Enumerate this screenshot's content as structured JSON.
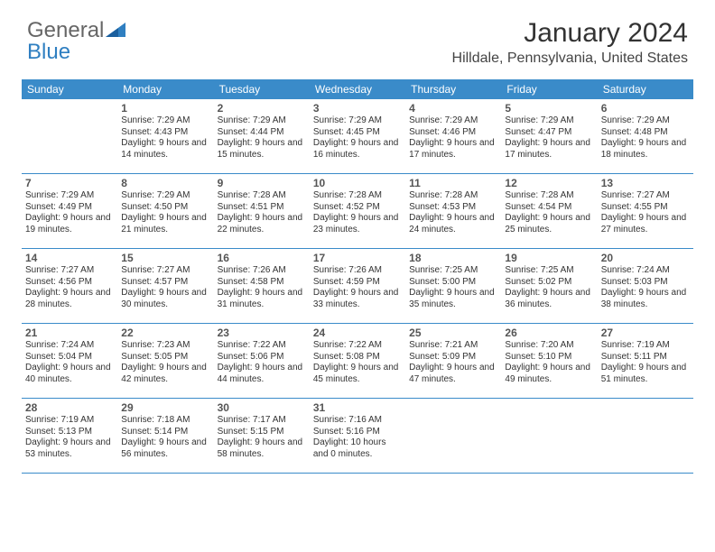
{
  "logo": {
    "part1": "General",
    "part2": "Blue"
  },
  "title": "January 2024",
  "location": "Hilldale, Pennsylvania, United States",
  "colors": {
    "header_bg": "#3a8bc9",
    "header_text": "#ffffff",
    "logo_blue": "#2f7fc1",
    "border": "#3a8bc9"
  },
  "weekdays": [
    "Sunday",
    "Monday",
    "Tuesday",
    "Wednesday",
    "Thursday",
    "Friday",
    "Saturday"
  ],
  "weeks": [
    [
      {
        "n": "",
        "sr": "",
        "ss": "",
        "dl": ""
      },
      {
        "n": "1",
        "sr": "Sunrise: 7:29 AM",
        "ss": "Sunset: 4:43 PM",
        "dl": "Daylight: 9 hours and 14 minutes."
      },
      {
        "n": "2",
        "sr": "Sunrise: 7:29 AM",
        "ss": "Sunset: 4:44 PM",
        "dl": "Daylight: 9 hours and 15 minutes."
      },
      {
        "n": "3",
        "sr": "Sunrise: 7:29 AM",
        "ss": "Sunset: 4:45 PM",
        "dl": "Daylight: 9 hours and 16 minutes."
      },
      {
        "n": "4",
        "sr": "Sunrise: 7:29 AM",
        "ss": "Sunset: 4:46 PM",
        "dl": "Daylight: 9 hours and 17 minutes."
      },
      {
        "n": "5",
        "sr": "Sunrise: 7:29 AM",
        "ss": "Sunset: 4:47 PM",
        "dl": "Daylight: 9 hours and 17 minutes."
      },
      {
        "n": "6",
        "sr": "Sunrise: 7:29 AM",
        "ss": "Sunset: 4:48 PM",
        "dl": "Daylight: 9 hours and 18 minutes."
      }
    ],
    [
      {
        "n": "7",
        "sr": "Sunrise: 7:29 AM",
        "ss": "Sunset: 4:49 PM",
        "dl": "Daylight: 9 hours and 19 minutes."
      },
      {
        "n": "8",
        "sr": "Sunrise: 7:29 AM",
        "ss": "Sunset: 4:50 PM",
        "dl": "Daylight: 9 hours and 21 minutes."
      },
      {
        "n": "9",
        "sr": "Sunrise: 7:28 AM",
        "ss": "Sunset: 4:51 PM",
        "dl": "Daylight: 9 hours and 22 minutes."
      },
      {
        "n": "10",
        "sr": "Sunrise: 7:28 AM",
        "ss": "Sunset: 4:52 PM",
        "dl": "Daylight: 9 hours and 23 minutes."
      },
      {
        "n": "11",
        "sr": "Sunrise: 7:28 AM",
        "ss": "Sunset: 4:53 PM",
        "dl": "Daylight: 9 hours and 24 minutes."
      },
      {
        "n": "12",
        "sr": "Sunrise: 7:28 AM",
        "ss": "Sunset: 4:54 PM",
        "dl": "Daylight: 9 hours and 25 minutes."
      },
      {
        "n": "13",
        "sr": "Sunrise: 7:27 AM",
        "ss": "Sunset: 4:55 PM",
        "dl": "Daylight: 9 hours and 27 minutes."
      }
    ],
    [
      {
        "n": "14",
        "sr": "Sunrise: 7:27 AM",
        "ss": "Sunset: 4:56 PM",
        "dl": "Daylight: 9 hours and 28 minutes."
      },
      {
        "n": "15",
        "sr": "Sunrise: 7:27 AM",
        "ss": "Sunset: 4:57 PM",
        "dl": "Daylight: 9 hours and 30 minutes."
      },
      {
        "n": "16",
        "sr": "Sunrise: 7:26 AM",
        "ss": "Sunset: 4:58 PM",
        "dl": "Daylight: 9 hours and 31 minutes."
      },
      {
        "n": "17",
        "sr": "Sunrise: 7:26 AM",
        "ss": "Sunset: 4:59 PM",
        "dl": "Daylight: 9 hours and 33 minutes."
      },
      {
        "n": "18",
        "sr": "Sunrise: 7:25 AM",
        "ss": "Sunset: 5:00 PM",
        "dl": "Daylight: 9 hours and 35 minutes."
      },
      {
        "n": "19",
        "sr": "Sunrise: 7:25 AM",
        "ss": "Sunset: 5:02 PM",
        "dl": "Daylight: 9 hours and 36 minutes."
      },
      {
        "n": "20",
        "sr": "Sunrise: 7:24 AM",
        "ss": "Sunset: 5:03 PM",
        "dl": "Daylight: 9 hours and 38 minutes."
      }
    ],
    [
      {
        "n": "21",
        "sr": "Sunrise: 7:24 AM",
        "ss": "Sunset: 5:04 PM",
        "dl": "Daylight: 9 hours and 40 minutes."
      },
      {
        "n": "22",
        "sr": "Sunrise: 7:23 AM",
        "ss": "Sunset: 5:05 PM",
        "dl": "Daylight: 9 hours and 42 minutes."
      },
      {
        "n": "23",
        "sr": "Sunrise: 7:22 AM",
        "ss": "Sunset: 5:06 PM",
        "dl": "Daylight: 9 hours and 44 minutes."
      },
      {
        "n": "24",
        "sr": "Sunrise: 7:22 AM",
        "ss": "Sunset: 5:08 PM",
        "dl": "Daylight: 9 hours and 45 minutes."
      },
      {
        "n": "25",
        "sr": "Sunrise: 7:21 AM",
        "ss": "Sunset: 5:09 PM",
        "dl": "Daylight: 9 hours and 47 minutes."
      },
      {
        "n": "26",
        "sr": "Sunrise: 7:20 AM",
        "ss": "Sunset: 5:10 PM",
        "dl": "Daylight: 9 hours and 49 minutes."
      },
      {
        "n": "27",
        "sr": "Sunrise: 7:19 AM",
        "ss": "Sunset: 5:11 PM",
        "dl": "Daylight: 9 hours and 51 minutes."
      }
    ],
    [
      {
        "n": "28",
        "sr": "Sunrise: 7:19 AM",
        "ss": "Sunset: 5:13 PM",
        "dl": "Daylight: 9 hours and 53 minutes."
      },
      {
        "n": "29",
        "sr": "Sunrise: 7:18 AM",
        "ss": "Sunset: 5:14 PM",
        "dl": "Daylight: 9 hours and 56 minutes."
      },
      {
        "n": "30",
        "sr": "Sunrise: 7:17 AM",
        "ss": "Sunset: 5:15 PM",
        "dl": "Daylight: 9 hours and 58 minutes."
      },
      {
        "n": "31",
        "sr": "Sunrise: 7:16 AM",
        "ss": "Sunset: 5:16 PM",
        "dl": "Daylight: 10 hours and 0 minutes."
      },
      {
        "n": "",
        "sr": "",
        "ss": "",
        "dl": ""
      },
      {
        "n": "",
        "sr": "",
        "ss": "",
        "dl": ""
      },
      {
        "n": "",
        "sr": "",
        "ss": "",
        "dl": ""
      }
    ]
  ]
}
